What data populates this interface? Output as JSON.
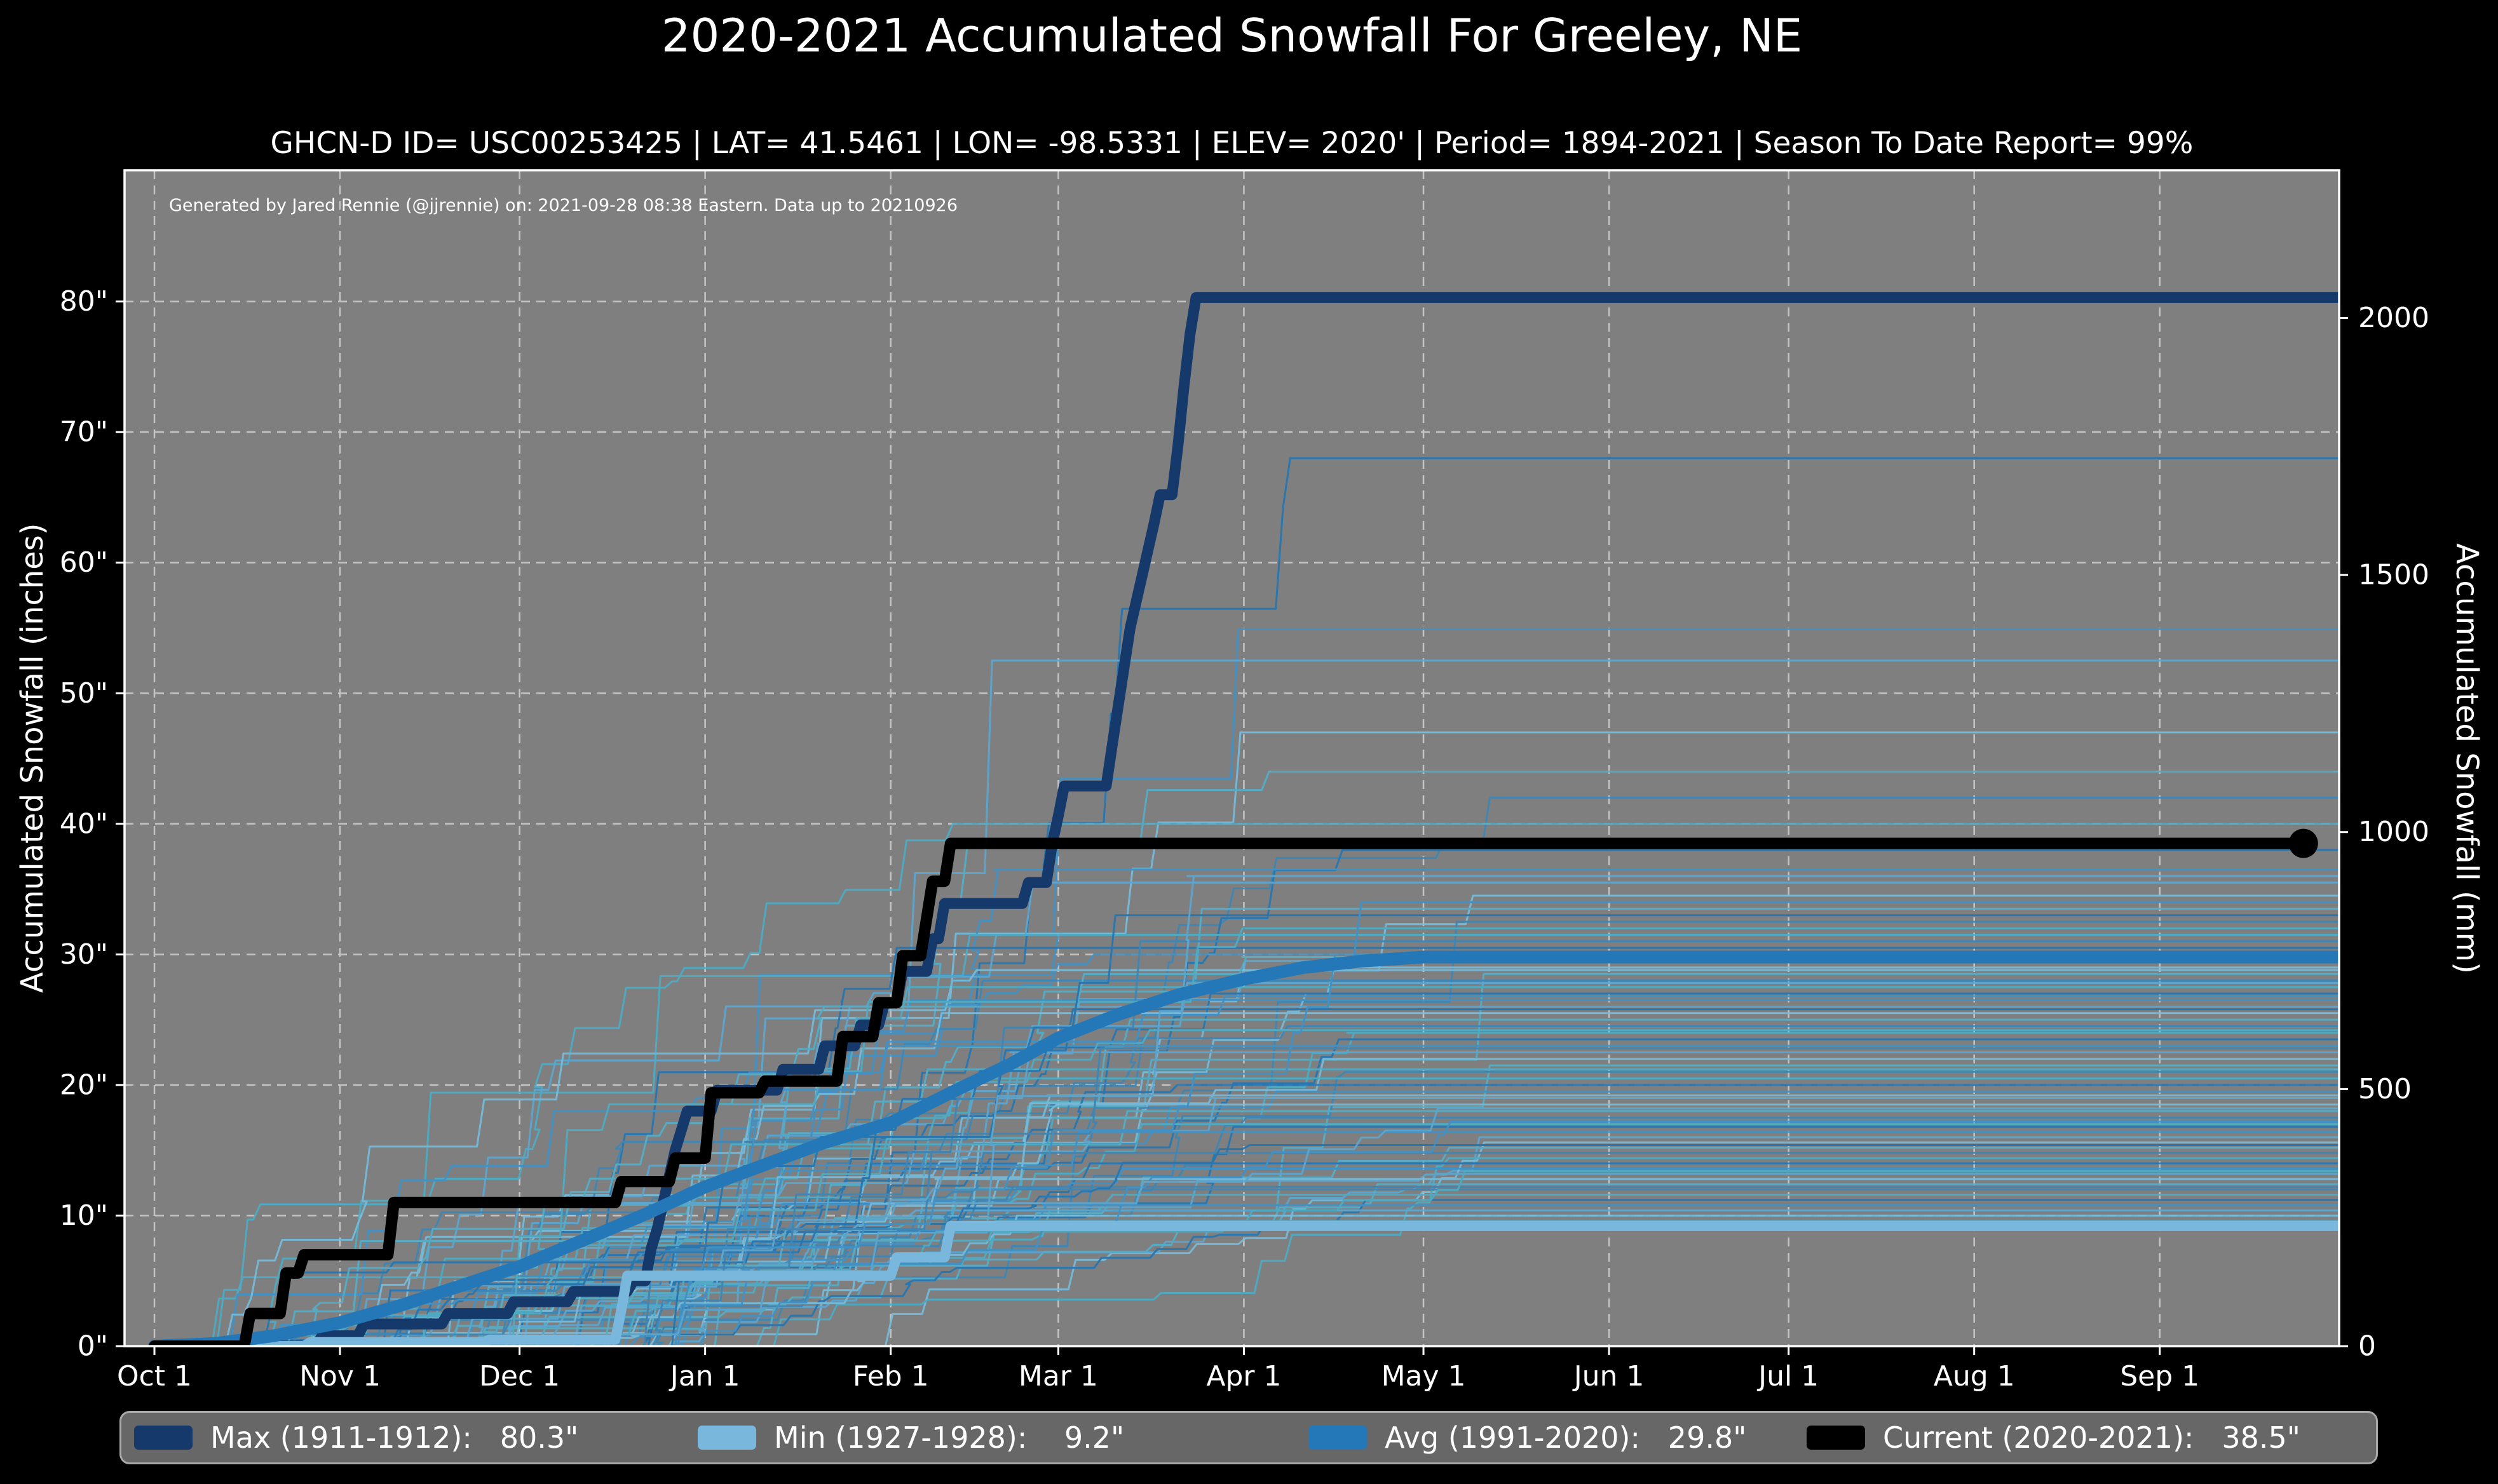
{
  "chart_data": {
    "type": "line",
    "title": "2020-2021 Accumulated Snowfall For Greeley, NE",
    "subtitle": "GHCN-D ID= USC00253425 | LAT= 41.5461 | LON= -98.5331 | ELEV= 2020' | Period= 1894-2021 | Season To Date Report= 99%",
    "annotation": "Generated by Jared Rennie (@jjrennie) on: 2021-09-28 08:38 Eastern. Data up to 20210926",
    "xlabel": "",
    "ylabel_left": "Accumulated Snowfall (inches)",
    "ylabel_right": "Accumulated Snowfall (mm)",
    "grid": true,
    "legend_position": "bottom",
    "x_axis": {
      "unit": "day of snow season (0 = Oct 1)",
      "range_days": [
        -5,
        365.6
      ],
      "ticks": [
        {
          "label": "Oct 1",
          "day": 0
        },
        {
          "label": "Nov 1",
          "day": 31
        },
        {
          "label": "Dec 1",
          "day": 61
        },
        {
          "label": "Jan 1",
          "day": 92
        },
        {
          "label": "Feb 1",
          "day": 123
        },
        {
          "label": "Mar 1",
          "day": 151
        },
        {
          "label": "Apr 1",
          "day": 182
        },
        {
          "label": "May 1",
          "day": 212
        },
        {
          "label": "Jun 1",
          "day": 243
        },
        {
          "label": "Jul 1",
          "day": 273
        },
        {
          "label": "Aug 1",
          "day": 304
        },
        {
          "label": "Sep 1",
          "day": 335
        }
      ]
    },
    "y_axis_left": {
      "unit": "inches",
      "range": [
        0,
        90
      ],
      "tick_values": [
        0,
        10,
        20,
        30,
        40,
        50,
        60,
        70,
        80
      ],
      "tick_labels": [
        "0\"",
        "10\"",
        "20\"",
        "30\"",
        "40\"",
        "50\"",
        "60\"",
        "70\"",
        "80\""
      ]
    },
    "y_axis_right": {
      "unit": "mm",
      "tick_values": [
        0,
        500,
        1000,
        1500,
        2000
      ],
      "tick_labels": [
        "0",
        "500",
        "1000",
        "1500",
        "2000"
      ]
    },
    "series": [
      {
        "name": "Max (1911-1912)",
        "total_inches": 80.3,
        "color": "#15396b",
        "width": 17,
        "points": [
          [
            0,
            0
          ],
          [
            27,
            0
          ],
          [
            28,
            0.8
          ],
          [
            34,
            0.8
          ],
          [
            35,
            1.7
          ],
          [
            48,
            1.7
          ],
          [
            49,
            2.5
          ],
          [
            59,
            2.5
          ],
          [
            60,
            3.4
          ],
          [
            69,
            3.4
          ],
          [
            70,
            4.2
          ],
          [
            79,
            4.2
          ],
          [
            80,
            5.0
          ],
          [
            82,
            5.0
          ],
          [
            83,
            7.5
          ],
          [
            84,
            9.0
          ],
          [
            85,
            11.0
          ],
          [
            86,
            13.0
          ],
          [
            87,
            15.0
          ],
          [
            88,
            16.5
          ],
          [
            89,
            18.0
          ],
          [
            93,
            18.0
          ],
          [
            94,
            19.6
          ],
          [
            104,
            19.6
          ],
          [
            105,
            21.2
          ],
          [
            111,
            21.2
          ],
          [
            112,
            23.0
          ],
          [
            117,
            23.0
          ],
          [
            118,
            24.6
          ],
          [
            121,
            24.6
          ],
          [
            122,
            26.3
          ],
          [
            124,
            26.3
          ],
          [
            125,
            28.7
          ],
          [
            129,
            28.7
          ],
          [
            130,
            31.2
          ],
          [
            131,
            31.2
          ],
          [
            132,
            33.9
          ],
          [
            145,
            33.9
          ],
          [
            146,
            35.5
          ],
          [
            149,
            35.5
          ],
          [
            150,
            38.5
          ],
          [
            151,
            40.6
          ],
          [
            152,
            42.9
          ],
          [
            159,
            42.9
          ],
          [
            160,
            46.0
          ],
          [
            162,
            52.0
          ],
          [
            163,
            55.0
          ],
          [
            164,
            57.0
          ],
          [
            165,
            59.0
          ],
          [
            167,
            63.0
          ],
          [
            168,
            65.2
          ],
          [
            170,
            65.2
          ],
          [
            171,
            69.0
          ],
          [
            172,
            73.5
          ],
          [
            173,
            77.5
          ],
          [
            174,
            80.3
          ],
          [
            365,
            80.3
          ]
        ]
      },
      {
        "name": "Min (1927-1928)",
        "total_inches": 9.2,
        "color": "#79b8dc",
        "width": 16,
        "points": [
          [
            0,
            0
          ],
          [
            25,
            0
          ],
          [
            26,
            0.3
          ],
          [
            55,
            0.3
          ],
          [
            56,
            0.5
          ],
          [
            77,
            0.5
          ],
          [
            78,
            2.8
          ],
          [
            79,
            5.4
          ],
          [
            123,
            5.4
          ],
          [
            124,
            6.8
          ],
          [
            132,
            6.8
          ],
          [
            133,
            9.2
          ],
          [
            365,
            9.2
          ]
        ]
      },
      {
        "name": "Avg (1991-2020)",
        "total_inches": 29.8,
        "color": "#2478b7",
        "width": 20,
        "points": [
          [
            0,
            0
          ],
          [
            10,
            0.2
          ],
          [
            20,
            0.8
          ],
          [
            31,
            1.8
          ],
          [
            41,
            3.1
          ],
          [
            51,
            4.6
          ],
          [
            61,
            6.1
          ],
          [
            71,
            8.0
          ],
          [
            82,
            10.1
          ],
          [
            92,
            12.2
          ],
          [
            102,
            13.9
          ],
          [
            112,
            15.6
          ],
          [
            123,
            17.1
          ],
          [
            133,
            19.4
          ],
          [
            143,
            21.6
          ],
          [
            151,
            23.6
          ],
          [
            161,
            25.4
          ],
          [
            171,
            26.9
          ],
          [
            182,
            28.1
          ],
          [
            192,
            29.0
          ],
          [
            202,
            29.5
          ],
          [
            212,
            29.8
          ],
          [
            365,
            29.8
          ]
        ]
      },
      {
        "name": "Current (2020-2021)",
        "total_inches": 38.5,
        "color": "#000000",
        "width": 18,
        "points": [
          [
            0,
            0
          ],
          [
            15,
            0
          ],
          [
            16,
            2.5
          ],
          [
            21,
            2.5
          ],
          [
            22,
            5.6
          ],
          [
            24,
            5.6
          ],
          [
            25,
            7.0
          ],
          [
            39,
            7.0
          ],
          [
            40,
            11.0
          ],
          [
            77,
            11.0
          ],
          [
            78,
            12.6
          ],
          [
            86,
            12.6
          ],
          [
            87,
            14.4
          ],
          [
            92,
            14.4
          ],
          [
            93,
            19.4
          ],
          [
            101,
            19.4
          ],
          [
            102,
            20.3
          ],
          [
            114,
            20.3
          ],
          [
            115,
            23.7
          ],
          [
            120,
            23.7
          ],
          [
            121,
            26.3
          ],
          [
            124,
            26.3
          ],
          [
            125,
            29.9
          ],
          [
            128,
            29.9
          ],
          [
            130,
            35.6
          ],
          [
            132,
            35.6
          ],
          [
            133,
            38.5
          ],
          [
            359,
            38.5
          ]
        ],
        "end_marker": {
          "day": 359,
          "value": 38.5,
          "radius": 23
        }
      }
    ],
    "background_years": {
      "description": "Thin lines: each snow season 1894-2021, approximate season totals",
      "seed": 11,
      "palette": [
        "#2176b5",
        "#3c93cc",
        "#5aa9d6",
        "#74bede",
        "#52b0cc",
        "#3b87b8",
        "#49aec9"
      ],
      "line_width": 3,
      "opacity": 0.9,
      "start_day_range": [
        8,
        85
      ],
      "finish_day_range": [
        125,
        235
      ],
      "final_values": [
        68,
        54.9,
        52.5,
        47,
        44,
        42,
        40,
        38,
        36.5,
        35.5,
        34.5,
        33.5,
        32.5,
        31.5,
        30.5,
        30,
        29.5,
        29,
        28.5,
        28,
        27.5,
        27,
        26.5,
        26,
        25.5,
        25,
        24.5,
        24,
        23.5,
        23,
        22.5,
        22,
        21.5,
        21,
        20.5,
        20,
        19.5,
        19,
        18.5,
        18,
        17.5,
        17,
        16.8,
        16.4,
        16,
        15.6,
        15.2,
        14.8,
        14.4,
        14,
        13.6,
        13.2,
        12.8,
        12.4,
        12,
        11.6,
        11.2,
        10.8,
        10.4,
        10,
        9.6,
        12.2,
        13.4,
        15.4,
        17.2,
        18.2,
        19.2,
        21.2,
        22.8,
        24.2,
        25.8,
        26.8,
        27.8,
        28.8,
        29.8,
        31,
        32,
        33,
        34,
        36
      ]
    }
  },
  "legend": {
    "items": [
      {
        "label": "Max (1911-1912):   80.3\"",
        "color": "#15396b"
      },
      {
        "label": "Min (1927-1928):    9.2\"",
        "color": "#79b8dc"
      },
      {
        "label": "Avg (1991-2020):   29.8\"",
        "color": "#2478b7"
      },
      {
        "label": "Current (2020-2021):   38.5\"",
        "color": "#000000"
      }
    ]
  },
  "colors": {
    "page_bg": "#000000",
    "plot_bg": "#7f7f7f",
    "grid": "#d6d6d6",
    "spine": "#ffffff",
    "text": "#ffffff",
    "legend_bg": "#676767",
    "legend_border": "#a9a9a9"
  }
}
